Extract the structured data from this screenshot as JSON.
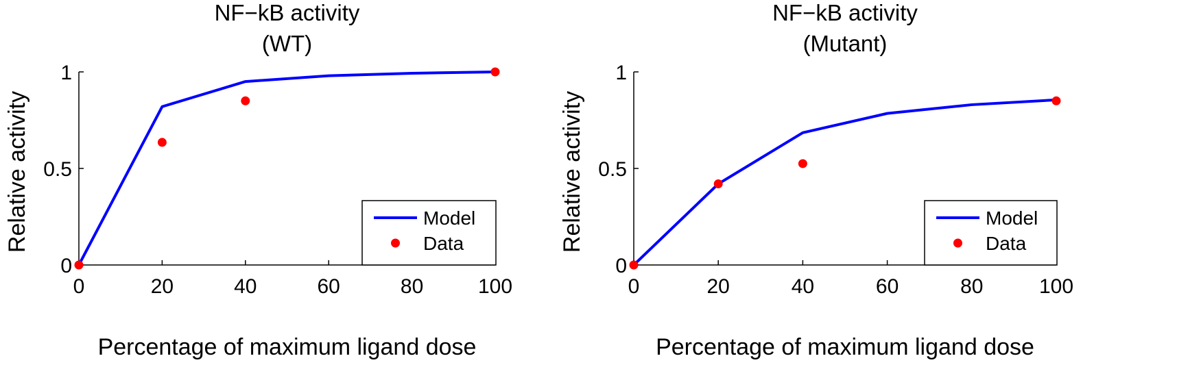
{
  "chart_data": [
    {
      "type": "line",
      "title": [
        "NF−kB activity",
        "(WT)"
      ],
      "xlabel": "Percentage of maximum ligand dose",
      "ylabel": "Relative activity",
      "xlim": [
        0,
        100
      ],
      "ylim": [
        0,
        1
      ],
      "xticks": [
        0,
        20,
        40,
        60,
        80,
        100
      ],
      "xtick_labels": [
        "0",
        "20",
        "40",
        "60",
        "80",
        "100"
      ],
      "yticks": [
        0,
        0.5,
        1
      ],
      "ytick_labels": [
        "0",
        "0.5",
        "1"
      ],
      "grid": false,
      "legend_position": "bottom-right",
      "series": [
        {
          "name": "Model",
          "kind": "line",
          "color": "#0000ff",
          "x": [
            0,
            20,
            40,
            60,
            80,
            100
          ],
          "y": [
            0,
            0.82,
            0.95,
            0.98,
            0.993,
            1.0
          ]
        },
        {
          "name": "Data",
          "kind": "marker",
          "color": "#ff0000",
          "x": [
            0,
            20,
            40,
            100
          ],
          "y": [
            0,
            0.635,
            0.85,
            1.0
          ]
        }
      ]
    },
    {
      "type": "line",
      "title": [
        "NF−kB activity",
        "(Mutant)"
      ],
      "xlabel": "Percentage of maximum ligand dose",
      "ylabel": "Relative activity",
      "xlim": [
        0,
        100
      ],
      "ylim": [
        0,
        1
      ],
      "xticks": [
        0,
        20,
        40,
        60,
        80,
        100
      ],
      "xtick_labels": [
        "0",
        "20",
        "40",
        "60",
        "80",
        "100"
      ],
      "yticks": [
        0,
        0.5,
        1
      ],
      "ytick_labels": [
        "0",
        "0.5",
        "1"
      ],
      "grid": false,
      "legend_position": "bottom-right",
      "series": [
        {
          "name": "Model",
          "kind": "line",
          "color": "#0000ff",
          "x": [
            0,
            20,
            40,
            60,
            80,
            100
          ],
          "y": [
            0,
            0.42,
            0.685,
            0.785,
            0.83,
            0.855
          ]
        },
        {
          "name": "Data",
          "kind": "marker",
          "color": "#ff0000",
          "x": [
            0,
            20,
            40,
            100
          ],
          "y": [
            0,
            0.42,
            0.525,
            0.85
          ]
        }
      ]
    }
  ]
}
